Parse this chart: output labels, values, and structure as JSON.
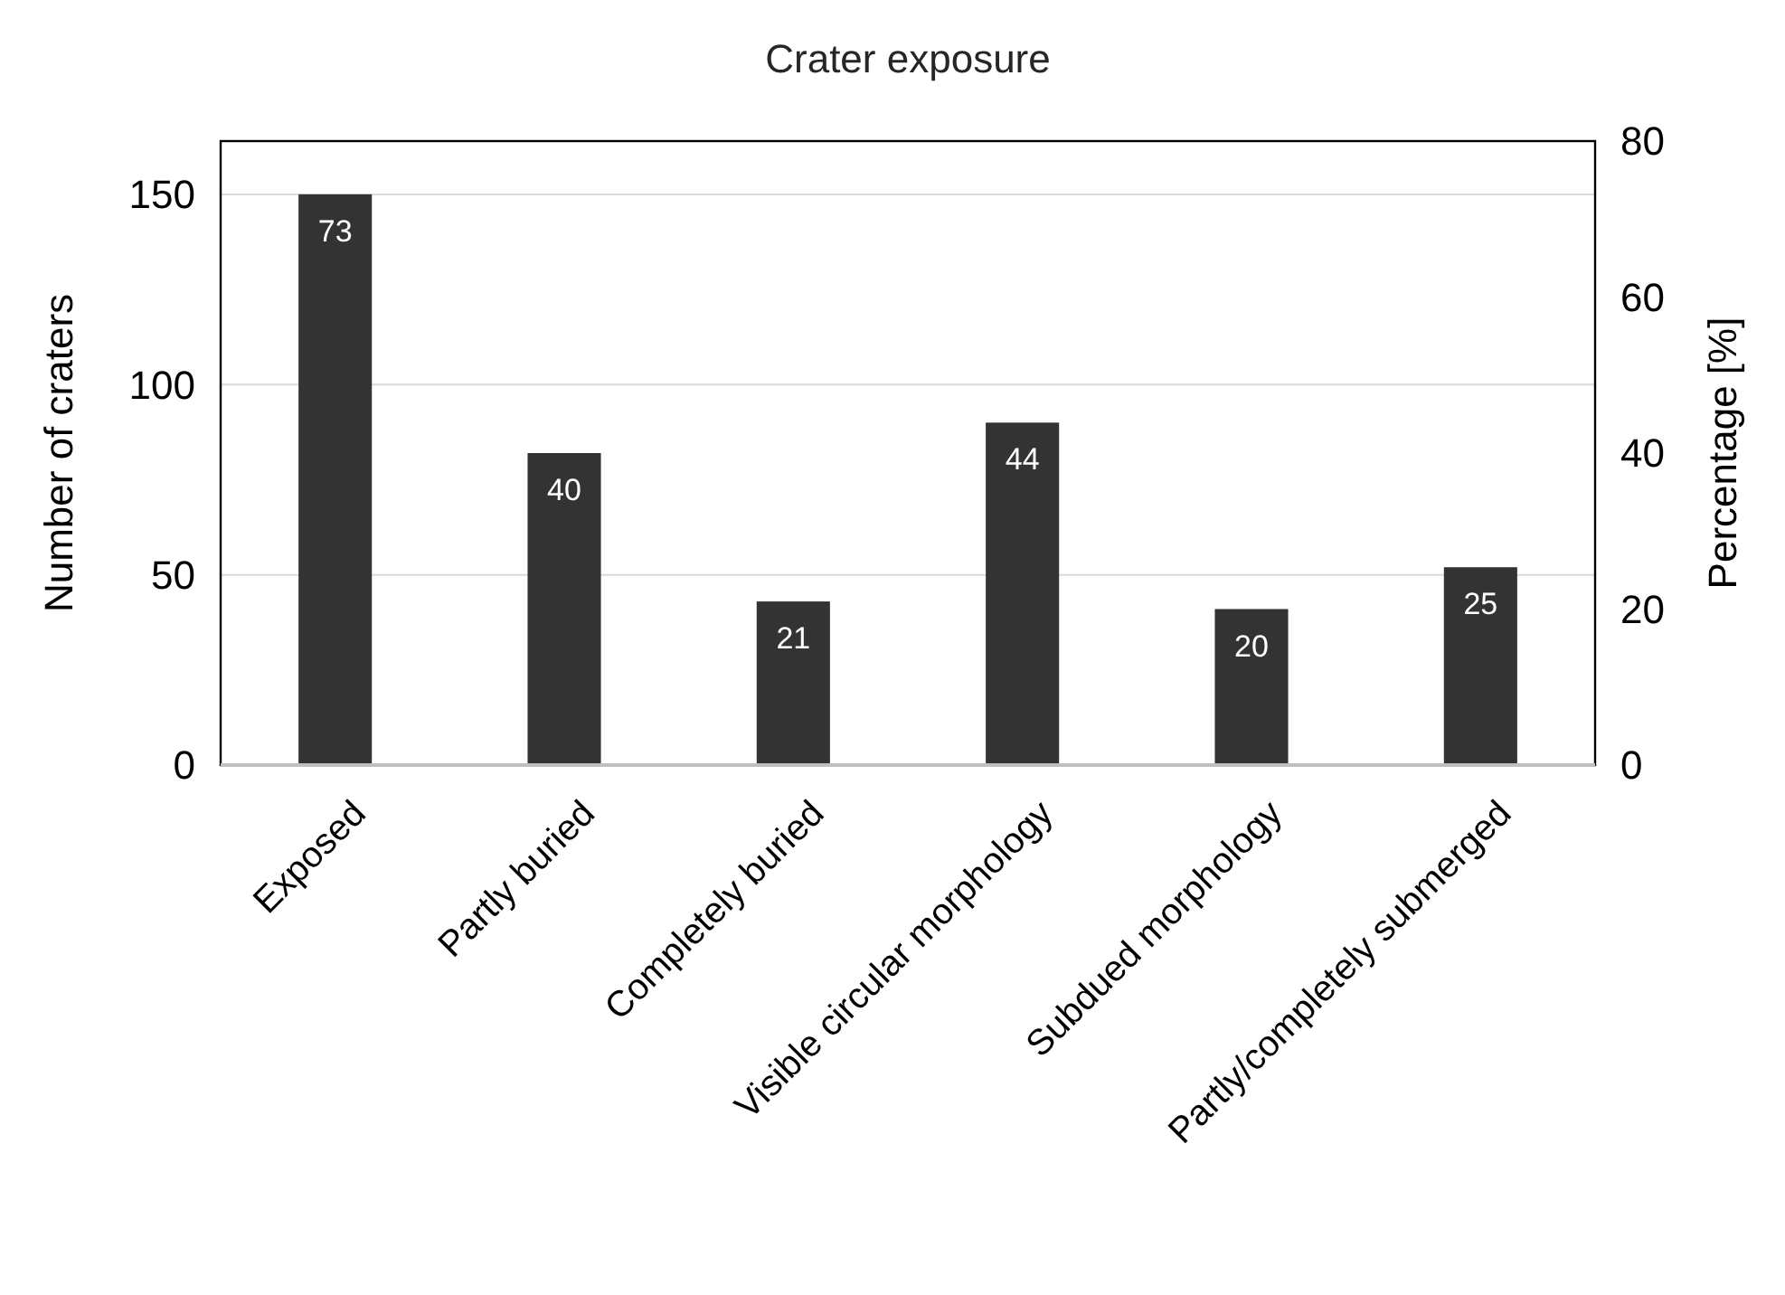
{
  "chart_data": {
    "type": "bar",
    "title": "Crater exposure",
    "ylabel": "Number of craters",
    "y2label": "Percentage [%]",
    "categories": [
      "Exposed",
      "Partly buried",
      "Completely buried",
      "Visible circular morphology",
      "Subdued morphology",
      "Partly/completely submerged"
    ],
    "series": [
      {
        "color": "#333333",
        "values": [
          150,
          82,
          43,
          90,
          41,
          52
        ]
      }
    ],
    "annotations": [
      {
        "text": "73",
        "x": "Exposed",
        "y": 150
      },
      {
        "text": "40",
        "x": "Partly buried",
        "y": 82
      },
      {
        "text": "21",
        "x": "Completely buried",
        "y": 43
      },
      {
        "text": "44",
        "x": "Visible circular morphology",
        "y": 90
      },
      {
        "text": "20",
        "x": "Subdued morphology",
        "y": 41
      },
      {
        "text": "25",
        "x": "Partly/completely submerged",
        "y": 52
      }
    ],
    "ylim": [
      0,
      164
    ],
    "yticks": [
      0,
      50,
      100,
      150
    ],
    "y2lim": [
      0,
      80
    ],
    "y2ticks": [
      0,
      20,
      40,
      60,
      80
    ],
    "grid": "y"
  }
}
